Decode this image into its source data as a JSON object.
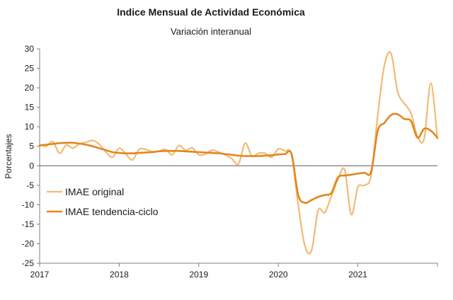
{
  "chart_data": {
    "type": "line",
    "title": "Indice Mensual de  Actividad Económica",
    "subtitle": "Variación interanual",
    "xlabel": "",
    "ylabel": "Porcentajes",
    "ylim": [
      -25,
      30
    ],
    "y_ticks": [
      -25,
      -20,
      -15,
      -10,
      -5,
      0,
      5,
      10,
      15,
      20,
      25,
      30
    ],
    "x_ticks": [
      "2017",
      "2018",
      "2019",
      "2020",
      "2021"
    ],
    "x_start": "2017-01",
    "grid": false,
    "legend_position": "left-lower",
    "series": [
      {
        "name": "IMAE original",
        "color": "#f5b971",
        "values": [
          5.5,
          5.0,
          6.2,
          3.2,
          5.3,
          4.5,
          5.6,
          6.0,
          6.5,
          5.5,
          3.5,
          2.2,
          4.5,
          3.0,
          1.5,
          4.2,
          4.2,
          3.6,
          3.8,
          4.2,
          2.8,
          5.2,
          4.0,
          4.6,
          2.8,
          3.0,
          4.0,
          3.5,
          2.8,
          1.8,
          0.5,
          5.8,
          2.5,
          3.2,
          3.2,
          2.2,
          4.3,
          3.8,
          2.8,
          -10.0,
          -20.5,
          -21.8,
          -11.5,
          -12.0,
          -7.8,
          -3.5,
          -1.0,
          -12.5,
          -5.5,
          -5.0,
          -2.5,
          13.0,
          25.8,
          28.8,
          19.0,
          16.0,
          13.5,
          7.5,
          7.0,
          21.2,
          7.0
        ]
      },
      {
        "name": "IMAE tendencia-ciclo",
        "color": "#e2861f",
        "values": [
          5.2,
          5.4,
          5.6,
          5.8,
          5.9,
          5.9,
          5.7,
          5.4,
          5.0,
          4.5,
          4.0,
          3.5,
          3.3,
          3.2,
          3.2,
          3.3,
          3.4,
          3.5,
          3.7,
          3.8,
          3.8,
          3.8,
          3.7,
          3.6,
          3.5,
          3.4,
          3.3,
          3.2,
          3.0,
          2.8,
          2.6,
          2.5,
          2.5,
          2.5,
          2.6,
          2.7,
          2.9,
          3.0,
          3.0,
          -7.5,
          -9.5,
          -8.8,
          -8.0,
          -7.5,
          -7.0,
          -3.0,
          -2.5,
          -2.3,
          -2.0,
          -1.8,
          -1.5,
          9.0,
          11.0,
          13.0,
          13.2,
          12.0,
          11.5,
          7.2,
          9.5,
          9.0,
          7.2
        ]
      }
    ]
  }
}
